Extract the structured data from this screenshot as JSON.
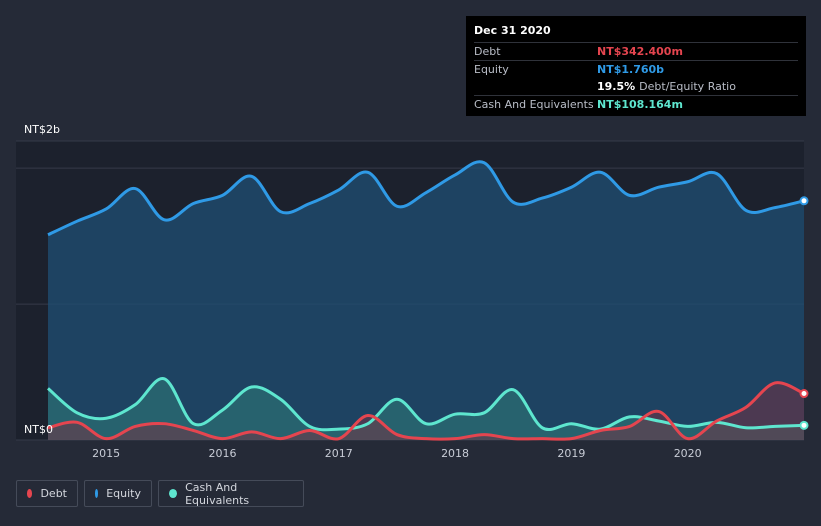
{
  "tooltip": {
    "date": "Dec 31 2020",
    "rows": [
      {
        "label": "Debt",
        "value": "NT$342.400m",
        "color": "#e5454f"
      },
      {
        "label": "Equity",
        "value": "NT$1.760b",
        "color": "#2f9ae6"
      }
    ],
    "ratio_value": "19.5%",
    "ratio_label": "Debt/Equity Ratio",
    "cash": {
      "label": "Cash And Equivalents",
      "value": "NT$108.164m",
      "color": "#5ee6cf"
    }
  },
  "legend": [
    {
      "label": "Debt",
      "color": "#e5454f"
    },
    {
      "label": "Equity",
      "color": "#2f9ae6"
    },
    {
      "label": "Cash And Equivalents",
      "color": "#5ee6cf"
    }
  ],
  "chart_data": {
    "type": "area",
    "ylabel_top": "NT$2b",
    "ylabel_bottom": "NT$0",
    "ylim": [
      0,
      2.2
    ],
    "xlim": [
      2014.5,
      2021.0
    ],
    "x_ticks": [
      "2015",
      "2016",
      "2017",
      "2018",
      "2019",
      "2020"
    ],
    "x_tick_values": [
      2015,
      2016,
      2017,
      2018,
      2019,
      2020
    ],
    "series": [
      {
        "name": "Equity",
        "color": "#2f9ae6",
        "x": [
          2014.5,
          2014.75,
          2015.0,
          2015.25,
          2015.5,
          2015.75,
          2016.0,
          2016.25,
          2016.5,
          2016.75,
          2017.0,
          2017.25,
          2017.5,
          2017.75,
          2018.0,
          2018.25,
          2018.5,
          2018.75,
          2019.0,
          2019.25,
          2019.5,
          2019.75,
          2020.0,
          2020.25,
          2020.5,
          2020.75,
          2021.0
        ],
        "values": [
          1.51,
          1.61,
          1.7,
          1.85,
          1.62,
          1.74,
          1.8,
          1.94,
          1.68,
          1.74,
          1.84,
          1.97,
          1.72,
          1.82,
          1.95,
          2.04,
          1.75,
          1.78,
          1.86,
          1.97,
          1.8,
          1.86,
          1.9,
          1.96,
          1.69,
          1.71,
          1.76
        ]
      },
      {
        "name": "Cash And Equivalents",
        "color": "#5ee6cf",
        "x": [
          2014.5,
          2014.75,
          2015.0,
          2015.25,
          2015.5,
          2015.75,
          2016.0,
          2016.25,
          2016.5,
          2016.75,
          2017.0,
          2017.25,
          2017.5,
          2017.75,
          2018.0,
          2018.25,
          2018.5,
          2018.75,
          2019.0,
          2019.25,
          2019.5,
          2019.75,
          2020.0,
          2020.25,
          2020.5,
          2020.75,
          2021.0
        ],
        "values": [
          0.38,
          0.2,
          0.16,
          0.26,
          0.45,
          0.12,
          0.22,
          0.39,
          0.3,
          0.1,
          0.08,
          0.12,
          0.3,
          0.12,
          0.19,
          0.2,
          0.37,
          0.09,
          0.12,
          0.08,
          0.17,
          0.14,
          0.1,
          0.13,
          0.09,
          0.1,
          0.108
        ]
      },
      {
        "name": "Debt",
        "color": "#e5454f",
        "x": [
          2014.5,
          2014.75,
          2015.0,
          2015.25,
          2015.5,
          2015.75,
          2016.0,
          2016.25,
          2016.5,
          2016.75,
          2017.0,
          2017.25,
          2017.5,
          2017.75,
          2018.0,
          2018.25,
          2018.5,
          2018.75,
          2019.0,
          2019.25,
          2019.5,
          2019.75,
          2020.0,
          2020.25,
          2020.5,
          2020.75,
          2021.0
        ],
        "values": [
          0.09,
          0.13,
          0.01,
          0.1,
          0.12,
          0.07,
          0.01,
          0.06,
          0.01,
          0.07,
          0.01,
          0.18,
          0.04,
          0.01,
          0.01,
          0.04,
          0.01,
          0.01,
          0.01,
          0.07,
          0.1,
          0.21,
          0.01,
          0.14,
          0.24,
          0.42,
          0.342
        ]
      }
    ]
  }
}
